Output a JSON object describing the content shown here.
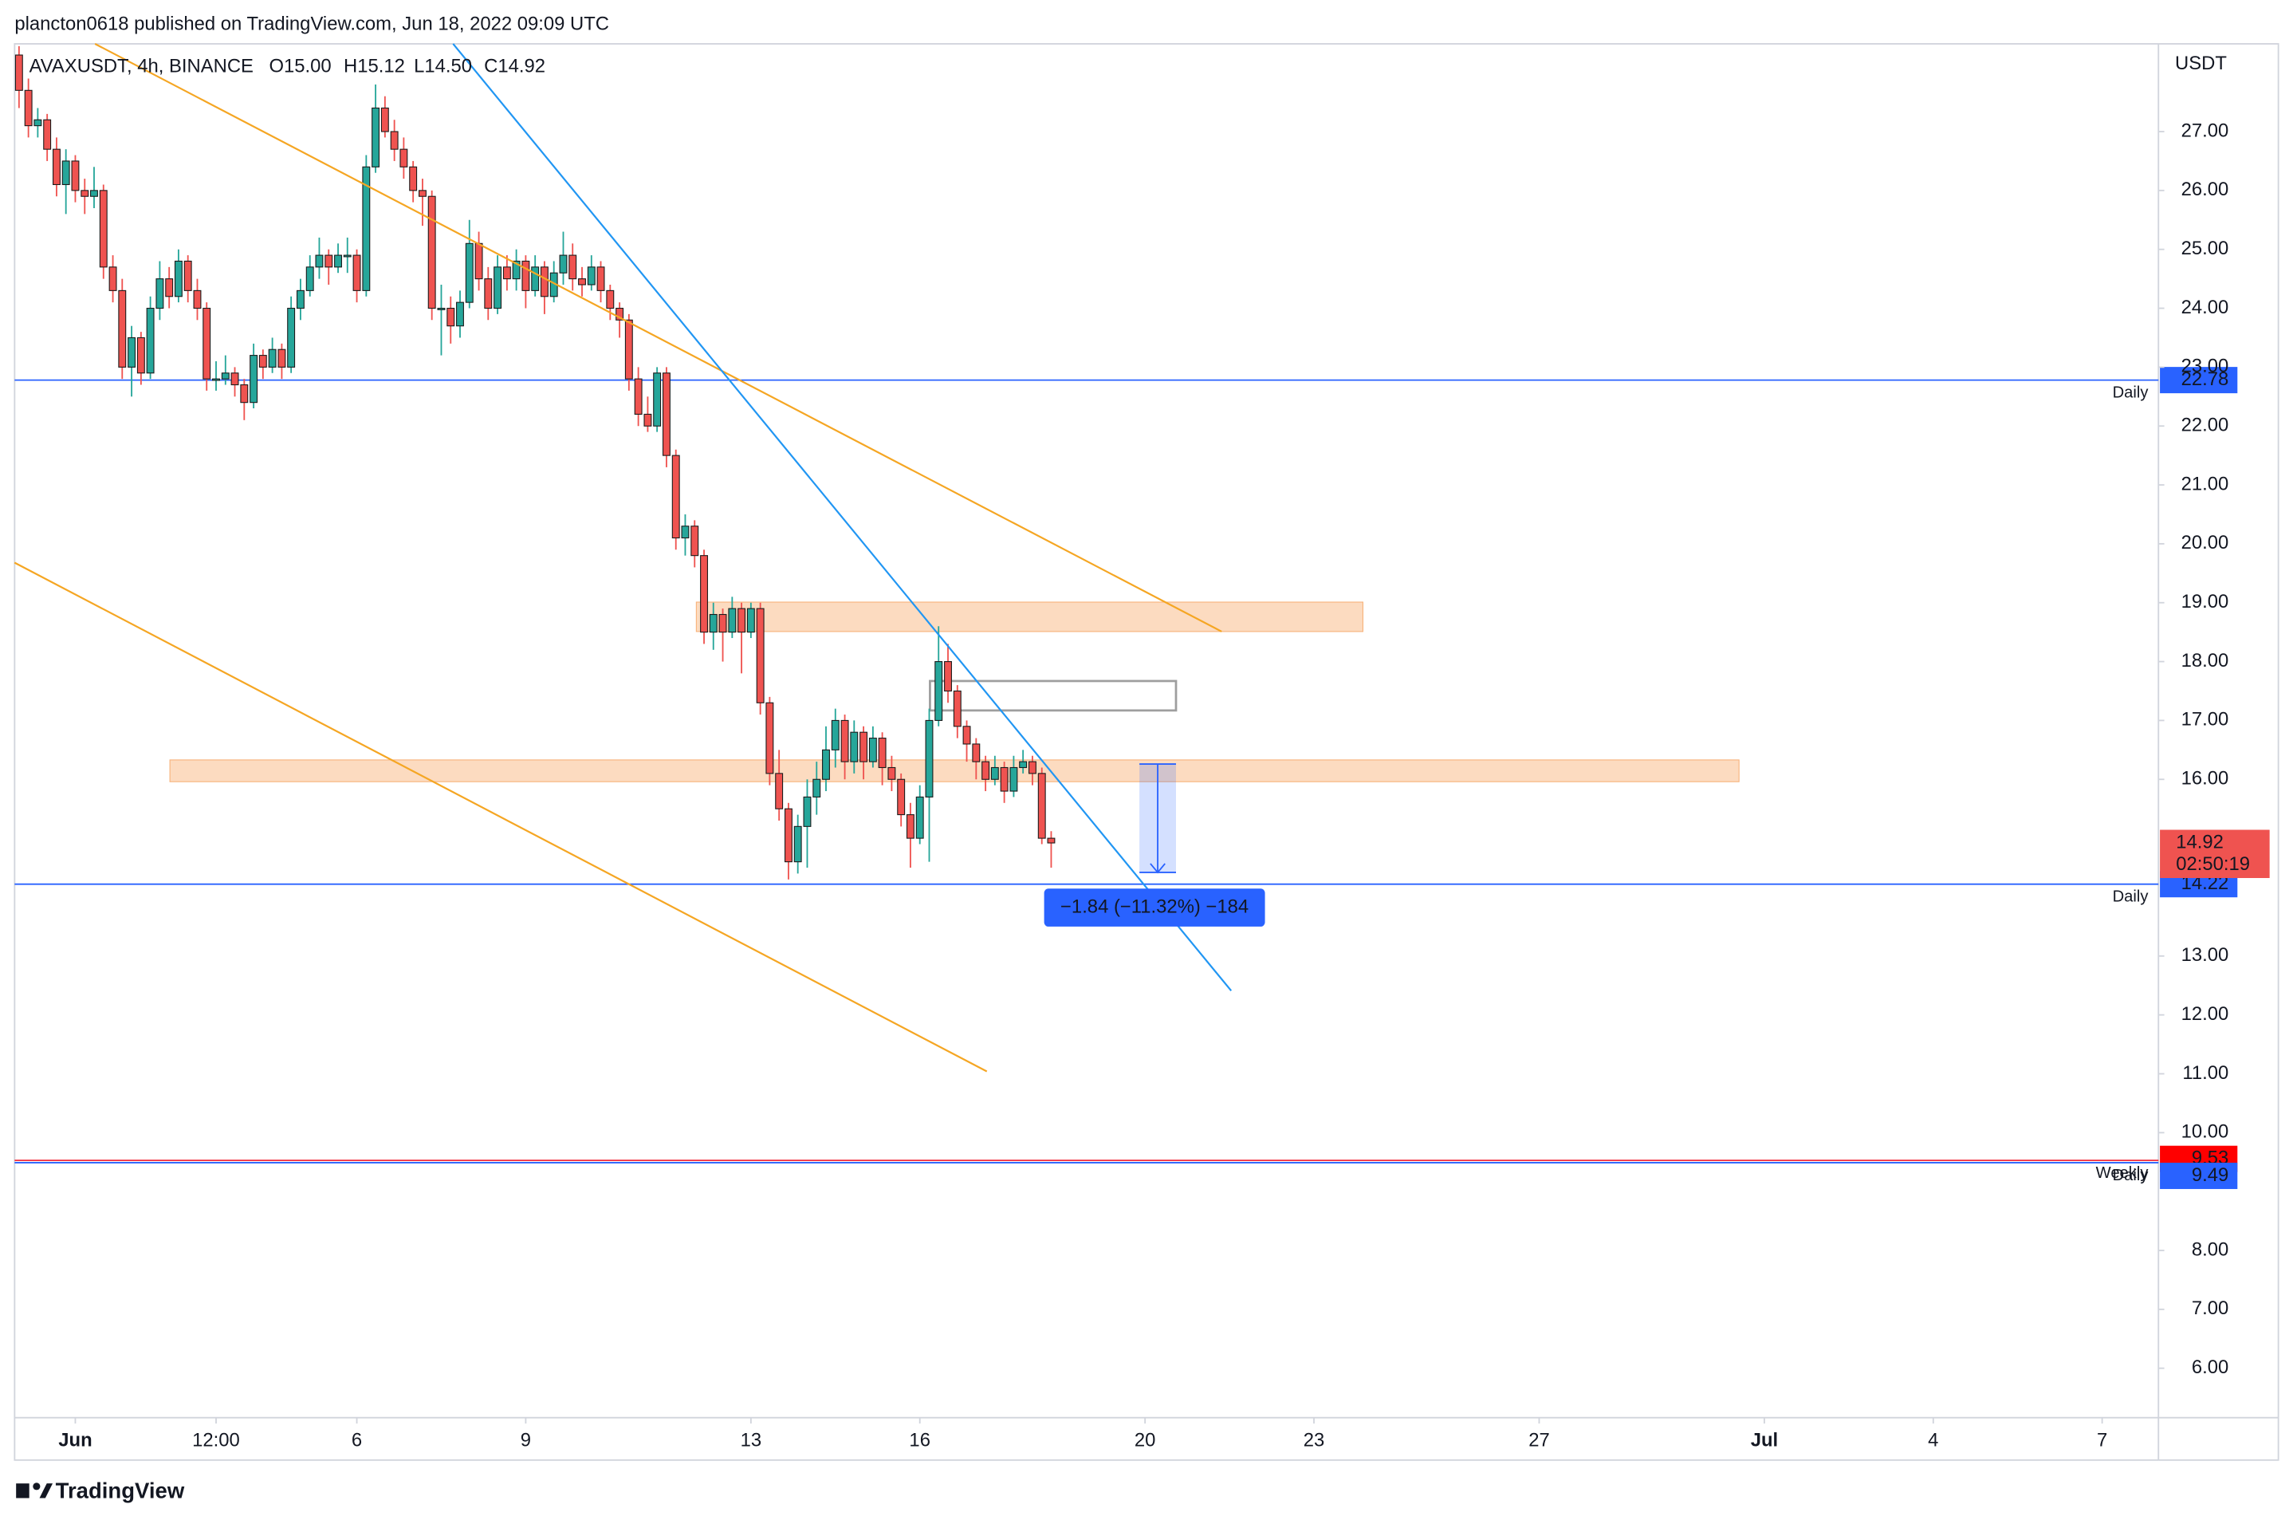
{
  "chart_data": {
    "type": "candlestick",
    "header": "plancton0618 published on TradingView.com, Jun 18, 2022 09:09 UTC",
    "symbol": "AVAXUSDT, 4h, BINANCE",
    "ohlc_labels": [
      "O15.00",
      "H15.12",
      "L14.50",
      "C14.92"
    ],
    "y_axis_label": "USDT",
    "footer": "TradingView",
    "up_color": "#26a69a",
    "down_color": "#ef5350",
    "xlim": [
      -0.078,
      38.0
    ],
    "ylim": [
      5.16,
      28.49
    ],
    "xticks": [
      {
        "value": 1,
        "label": "Jun"
      },
      {
        "value": 3.5,
        "label": "12:00"
      },
      6,
      9,
      13,
      16,
      20,
      23,
      27,
      {
        "value": 31,
        "label": "Jul"
      },
      {
        "value": 34,
        "label": "4"
      },
      {
        "value": 37,
        "label": "7"
      }
    ],
    "yticks": [
      {
        "value": 27,
        "label": "27.00"
      },
      {
        "value": 26,
        "label": "26.00"
      },
      {
        "value": 25,
        "label": "25.00"
      },
      {
        "value": 24,
        "label": "24.00"
      },
      {
        "value": 23,
        "label": "23.00"
      },
      {
        "value": 22,
        "label": "22.00"
      },
      {
        "value": 21,
        "label": "21.00"
      },
      {
        "value": 20,
        "label": "20.00"
      },
      {
        "value": 19,
        "label": "19.00"
      },
      {
        "value": 18,
        "label": "18.00"
      },
      {
        "value": 17,
        "label": "17.00"
      },
      {
        "value": 16,
        "label": "16.00"
      },
      {
        "value": 13,
        "label": "13.00"
      },
      {
        "value": 12,
        "label": "12.00"
      },
      {
        "value": 11,
        "label": "11.00"
      },
      {
        "value": 10,
        "label": "10.00"
      },
      {
        "value": 8,
        "label": "8.00"
      },
      {
        "value": 7,
        "label": "7.00"
      },
      {
        "value": 6,
        "label": "6.00"
      }
    ],
    "x": [
      0,
      0.167,
      0.333,
      0.5,
      0.667,
      0.833,
      1,
      1.167,
      1.333,
      1.5,
      1.667,
      1.833,
      2,
      2.167,
      2.333,
      2.5,
      2.667,
      2.833,
      3,
      3.167,
      3.333,
      3.5,
      3.667,
      3.833,
      4,
      4.167,
      4.333,
      4.5,
      4.667,
      4.833,
      5,
      5.167,
      5.333,
      5.5,
      5.667,
      5.833,
      6,
      6.167,
      6.333,
      6.5,
      6.667,
      6.833,
      7,
      7.167,
      7.333,
      7.5,
      7.667,
      7.833,
      8,
      8.167,
      8.333,
      8.5,
      8.667,
      8.833,
      9,
      9.167,
      9.333,
      9.5,
      9.667,
      9.833,
      10,
      10.167,
      10.333,
      10.5,
      10.667,
      10.833,
      11,
      11.167,
      11.333,
      11.5,
      11.667,
      11.833,
      12,
      12.167,
      12.333,
      12.5,
      12.667,
      12.833,
      13,
      13.167,
      13.333,
      13.5,
      13.667,
      13.833,
      14,
      14.167,
      14.333,
      14.5,
      14.667,
      14.833,
      15,
      15.167,
      15.333,
      15.5,
      15.667,
      15.833,
      16,
      16.167,
      16.333,
      16.5,
      16.667,
      16.833,
      17,
      17.167,
      17.333,
      17.5,
      17.667,
      17.833,
      18,
      18.167,
      18.333
    ],
    "ohlc": [
      [
        28.3,
        28.45,
        27.4,
        27.7
      ],
      [
        27.7,
        27.9,
        26.9,
        27.1
      ],
      [
        27.1,
        27.4,
        26.9,
        27.2
      ],
      [
        27.2,
        27.3,
        26.5,
        26.7
      ],
      [
        26.7,
        26.9,
        25.9,
        26.1
      ],
      [
        26.1,
        26.7,
        25.6,
        26.5
      ],
      [
        26.5,
        26.6,
        25.8,
        26.0
      ],
      [
        26.0,
        26.2,
        25.6,
        25.9
      ],
      [
        25.9,
        26.4,
        25.7,
        26.0
      ],
      [
        26.0,
        26.1,
        24.5,
        24.7
      ],
      [
        24.7,
        24.9,
        24.1,
        24.3
      ],
      [
        24.3,
        24.5,
        22.8,
        23.0
      ],
      [
        23.0,
        23.7,
        22.5,
        23.5
      ],
      [
        23.5,
        23.6,
        22.7,
        22.9
      ],
      [
        22.9,
        24.2,
        22.8,
        24.0
      ],
      [
        24.0,
        24.8,
        23.8,
        24.5
      ],
      [
        24.5,
        24.7,
        24.0,
        24.2
      ],
      [
        24.2,
        25.0,
        24.1,
        24.8
      ],
      [
        24.8,
        24.9,
        24.1,
        24.3
      ],
      [
        24.3,
        24.5,
        23.8,
        24.0
      ],
      [
        24.0,
        24.1,
        22.6,
        22.8
      ],
      [
        22.8,
        23.1,
        22.6,
        22.8
      ],
      [
        22.8,
        23.2,
        22.7,
        22.9
      ],
      [
        22.9,
        23.0,
        22.5,
        22.7
      ],
      [
        22.7,
        22.8,
        22.1,
        22.4
      ],
      [
        22.4,
        23.4,
        22.3,
        23.2
      ],
      [
        23.2,
        23.3,
        22.8,
        23.0
      ],
      [
        23.0,
        23.5,
        22.9,
        23.3
      ],
      [
        23.3,
        23.4,
        22.8,
        23.0
      ],
      [
        23.0,
        24.2,
        22.9,
        24.0
      ],
      [
        24.0,
        24.5,
        23.8,
        24.3
      ],
      [
        24.3,
        24.9,
        24.2,
        24.7
      ],
      [
        24.7,
        25.2,
        24.5,
        24.9
      ],
      [
        24.9,
        25.0,
        24.4,
        24.7
      ],
      [
        24.7,
        25.1,
        24.6,
        24.9
      ],
      [
        24.9,
        25.2,
        24.6,
        24.9
      ],
      [
        24.9,
        25.0,
        24.1,
        24.3
      ],
      [
        24.3,
        26.6,
        24.2,
        26.4
      ],
      [
        26.4,
        27.8,
        26.3,
        27.4
      ],
      [
        27.4,
        27.6,
        26.9,
        27.0
      ],
      [
        27.0,
        27.2,
        26.5,
        26.7
      ],
      [
        26.7,
        26.9,
        26.2,
        26.4
      ],
      [
        26.4,
        26.5,
        25.8,
        26.0
      ],
      [
        26.0,
        26.2,
        25.4,
        25.9
      ],
      [
        25.9,
        26.0,
        23.8,
        24.0
      ],
      [
        24.0,
        24.4,
        23.2,
        24.0
      ],
      [
        24.0,
        24.2,
        23.4,
        23.7
      ],
      [
        23.7,
        24.3,
        23.5,
        24.1
      ],
      [
        24.1,
        25.5,
        24.0,
        25.1
      ],
      [
        25.1,
        25.3,
        24.3,
        24.5
      ],
      [
        24.5,
        24.7,
        23.8,
        24.0
      ],
      [
        24.0,
        24.9,
        23.9,
        24.7
      ],
      [
        24.7,
        24.9,
        24.3,
        24.5
      ],
      [
        24.5,
        25.0,
        24.3,
        24.8
      ],
      [
        24.8,
        24.9,
        24.0,
        24.3
      ],
      [
        24.3,
        24.9,
        24.2,
        24.7
      ],
      [
        24.7,
        24.8,
        23.9,
        24.2
      ],
      [
        24.2,
        24.8,
        24.1,
        24.6
      ],
      [
        24.6,
        25.3,
        24.4,
        24.9
      ],
      [
        24.9,
        25.1,
        24.3,
        24.5
      ],
      [
        24.5,
        24.7,
        24.2,
        24.4
      ],
      [
        24.4,
        24.9,
        24.3,
        24.7
      ],
      [
        24.7,
        24.8,
        24.1,
        24.3
      ],
      [
        24.3,
        24.4,
        23.8,
        24.0
      ],
      [
        24.0,
        24.1,
        23.5,
        23.8
      ],
      [
        23.8,
        23.9,
        22.6,
        22.8
      ],
      [
        22.8,
        23.0,
        22.0,
        22.2
      ],
      [
        22.2,
        22.5,
        21.9,
        22.0
      ],
      [
        22.0,
        23.0,
        21.9,
        22.9
      ],
      [
        22.9,
        23.0,
        21.3,
        21.5
      ],
      [
        21.5,
        21.6,
        19.9,
        20.1
      ],
      [
        20.1,
        20.5,
        19.8,
        20.3
      ],
      [
        20.3,
        20.4,
        19.6,
        19.8
      ],
      [
        19.8,
        19.9,
        18.3,
        18.5
      ],
      [
        18.5,
        19.0,
        18.2,
        18.8
      ],
      [
        18.8,
        18.9,
        18.0,
        18.5
      ],
      [
        18.5,
        19.1,
        18.4,
        18.9
      ],
      [
        18.9,
        19.0,
        17.8,
        18.5
      ],
      [
        18.5,
        19.0,
        18.4,
        18.9
      ],
      [
        18.9,
        19.0,
        17.1,
        17.3
      ],
      [
        17.3,
        17.4,
        15.9,
        16.1
      ],
      [
        16.1,
        16.5,
        15.3,
        15.5
      ],
      [
        15.5,
        15.6,
        14.3,
        14.6
      ],
      [
        14.6,
        15.4,
        14.4,
        15.2
      ],
      [
        15.2,
        16.0,
        14.5,
        15.7
      ],
      [
        15.7,
        16.3,
        15.4,
        16.0
      ],
      [
        16.0,
        16.9,
        15.8,
        16.5
      ],
      [
        16.5,
        17.2,
        16.2,
        17.0
      ],
      [
        17.0,
        17.1,
        16.0,
        16.3
      ],
      [
        16.3,
        17.0,
        16.1,
        16.8
      ],
      [
        16.8,
        16.9,
        16.0,
        16.3
      ],
      [
        16.3,
        16.9,
        16.2,
        16.7
      ],
      [
        16.7,
        16.8,
        15.9,
        16.2
      ],
      [
        16.2,
        16.4,
        15.8,
        16.0
      ],
      [
        16.0,
        16.1,
        15.2,
        15.4
      ],
      [
        15.4,
        15.6,
        14.5,
        15.0
      ],
      [
        15.0,
        15.9,
        14.9,
        15.7
      ],
      [
        15.7,
        17.2,
        14.6,
        17.0
      ],
      [
        17.0,
        18.6,
        16.9,
        18.0
      ],
      [
        18.0,
        18.3,
        17.3,
        17.5
      ],
      [
        17.5,
        17.6,
        16.7,
        16.9
      ],
      [
        16.9,
        17.0,
        16.3,
        16.6
      ],
      [
        16.6,
        16.7,
        16.0,
        16.3
      ],
      [
        16.3,
        16.4,
        15.8,
        16.0
      ],
      [
        16.0,
        16.4,
        15.9,
        16.2
      ],
      [
        16.2,
        16.3,
        15.6,
        15.8
      ],
      [
        15.8,
        16.4,
        15.7,
        16.2
      ],
      [
        16.2,
        16.5,
        16.1,
        16.3
      ],
      [
        16.3,
        16.4,
        15.9,
        16.1
      ],
      [
        16.1,
        16.2,
        14.9,
        15.0
      ],
      [
        15.0,
        15.12,
        14.5,
        14.92
      ]
    ],
    "trendlines": [
      {
        "color": "#f5a623",
        "x": [
          1.35,
          21.36
        ],
        "y": [
          28.49,
          18.51
        ]
      },
      {
        "color": "#f5a623",
        "x": [
          -0.08,
          17.19
        ],
        "y": [
          19.68,
          11.04
        ]
      },
      {
        "color": "#2196f3",
        "x": [
          7.71,
          21.53
        ],
        "y": [
          28.49,
          12.41
        ]
      }
    ],
    "zones": [
      {
        "color": "#fbd5b5",
        "x": [
          12.03,
          23.87
        ],
        "y": [
          18.51,
          19.01
        ]
      },
      {
        "color": "#fbd5b5",
        "x": [
          2.68,
          30.55
        ],
        "y": [
          15.96,
          16.33
        ]
      }
    ],
    "box": {
      "color": "#9e9e9e",
      "x": [
        16.18,
        20.55
      ],
      "y": [
        17.17,
        17.67
      ]
    },
    "measure": {
      "x": [
        19.9,
        20.55
      ],
      "y": [
        16.26,
        14.42
      ],
      "label": "−1.84 (−11.32%) −184"
    },
    "levels": [
      {
        "value": 22.78,
        "label": "22.78",
        "tag": "Daily",
        "color": "#2962ff"
      },
      {
        "value": 14.22,
        "label": "14.22",
        "tag": "Daily",
        "color": "#2962ff"
      },
      {
        "value": 9.53,
        "label": "9.53",
        "tag": "Weekly",
        "color": "#f23645"
      },
      {
        "value": 9.49,
        "label": "9.49",
        "tag": "Daily",
        "color": "#2962ff"
      }
    ],
    "last_price": {
      "value": 14.92,
      "label": "14.92",
      "countdown": "02:50:19",
      "color": "#ef5350"
    }
  }
}
